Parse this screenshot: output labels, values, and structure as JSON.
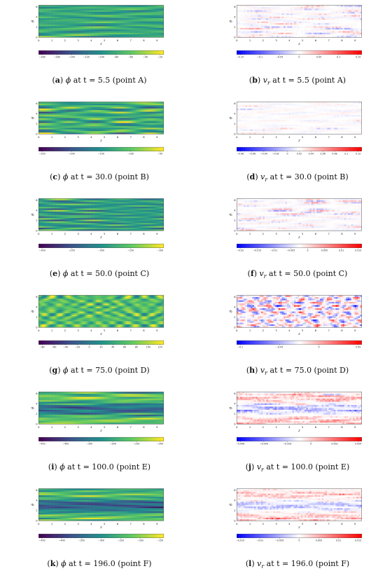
{
  "axes": {
    "ylabel": "θ",
    "xlabel": "z",
    "xticks": [
      "0",
      "1",
      "2",
      "3",
      "4",
      "5",
      "6",
      "7",
      "8",
      "9"
    ],
    "yticks": [
      "0",
      "2",
      "4",
      "6"
    ]
  },
  "panels": [
    {
      "letter": "a",
      "var": "phi",
      "time": "5.5",
      "point": "A",
      "cbar_ticks": [
        "−180",
        "−160",
        "−140",
        "−120",
        "−100",
        "−80",
        "−60",
        "−40",
        "−20"
      ]
    },
    {
      "letter": "b",
      "var": "vr",
      "time": "5.5",
      "point": "A",
      "cbar_ticks": [
        "−0.15",
        "−0.1",
        "−0.05",
        "0",
        "0.05",
        "0.1",
        "0.15"
      ]
    },
    {
      "letter": "c",
      "var": "phi",
      "time": "30.0",
      "point": "B",
      "cbar_ticks": [
        "−250",
        "−200",
        "−150",
        "−100",
        "−50"
      ]
    },
    {
      "letter": "d",
      "var": "vr",
      "time": "30.0",
      "point": "B",
      "cbar_ticks": [
        "−0.08",
        "−0.06",
        "−0.04",
        "−0.02",
        "0",
        "0.02",
        "0.04",
        "0.06",
        "0.08",
        "0.1",
        "0.12"
      ]
    },
    {
      "letter": "e",
      "var": "phi",
      "time": "50.0",
      "point": "C",
      "cbar_ticks": [
        "−300",
        "−250",
        "−200",
        "−150",
        "−100"
      ]
    },
    {
      "letter": "f",
      "var": "vr",
      "time": "50.0",
      "point": "C",
      "cbar_ticks": [
        "−0.02",
        "−0.015",
        "−0.01",
        "−0.005",
        "0",
        "0.005",
        "0.01",
        "0.015"
      ]
    },
    {
      "letter": "g",
      "var": "phi",
      "time": "75.0",
      "point": "D",
      "cbar_ticks": [
        "−80",
        "−60",
        "−40",
        "−20",
        "0",
        "20",
        "40",
        "60",
        "80",
        "100",
        "120"
      ]
    },
    {
      "letter": "h",
      "var": "vr",
      "time": "75.0",
      "point": "D",
      "cbar_ticks": [
        "−0.1",
        "−0.05",
        "0",
        "0.05"
      ]
    },
    {
      "letter": "i",
      "var": "phi",
      "time": "100.0",
      "point": "E",
      "cbar_ticks": [
        "−450",
        "−400",
        "−350",
        "−300",
        "−250",
        "−200"
      ]
    },
    {
      "letter": "j",
      "var": "vr",
      "time": "100.0",
      "point": "E",
      "cbar_ticks": [
        "−0.006",
        "−0.004",
        "−0.002",
        "0",
        "0.002",
        "0.004"
      ]
    },
    {
      "letter": "k",
      "var": "phi",
      "time": "196.0",
      "point": "F",
      "cbar_ticks": [
        "−450",
        "−400",
        "−350",
        "−300",
        "−250",
        "−200",
        "−150"
      ]
    },
    {
      "letter": "l",
      "var": "vr",
      "time": "196.0",
      "point": "F",
      "cbar_ticks": [
        "−0.015",
        "−0.01",
        "−0.005",
        "0",
        "0.005",
        "0.01",
        "0.015"
      ]
    }
  ],
  "captions": [
    {
      "letter": "a",
      "sym": "ϕ",
      "sub": "",
      "time_text": "at t = 5.5 (point A)"
    },
    {
      "letter": "b",
      "sym": "v",
      "sub": "r",
      "time_text": "at t = 5.5 (point A)"
    },
    {
      "letter": "c",
      "sym": "ϕ",
      "sub": "",
      "time_text": "at t = 30.0 (point B)"
    },
    {
      "letter": "d",
      "sym": "v",
      "sub": "r",
      "time_text": "at t = 30.0 (point B)"
    },
    {
      "letter": "e",
      "sym": "ϕ",
      "sub": "",
      "time_text": "at t = 50.0 (point C)"
    },
    {
      "letter": "f",
      "sym": "v",
      "sub": "r",
      "time_text": "at t = 50.0 (point C)"
    },
    {
      "letter": "g",
      "sym": "ϕ",
      "sub": "",
      "time_text": "at t = 75.0 (point D)"
    },
    {
      "letter": "h",
      "sym": "v",
      "sub": "r",
      "time_text": "at t = 75.0 (point D)"
    },
    {
      "letter": "i",
      "sym": "ϕ",
      "sub": "",
      "time_text": "at t = 100.0 (point E)"
    },
    {
      "letter": "j",
      "sym": "v",
      "sub": "r",
      "time_text": "at t = 100.0 (point E)"
    },
    {
      "letter": "k",
      "sym": "ϕ",
      "sub": "",
      "time_text": "at t = 196.0 (point F)"
    },
    {
      "letter": "l",
      "sym": "v",
      "sub": "r",
      "time_text": "at t = 196.0 (point F)"
    }
  ],
  "colors": {
    "viridis": [
      "#440154",
      "#3b528b",
      "#21918c",
      "#5ec962",
      "#fde725"
    ],
    "bwr": [
      "#0000ff",
      "#ffffff",
      "#ff0000"
    ]
  }
}
